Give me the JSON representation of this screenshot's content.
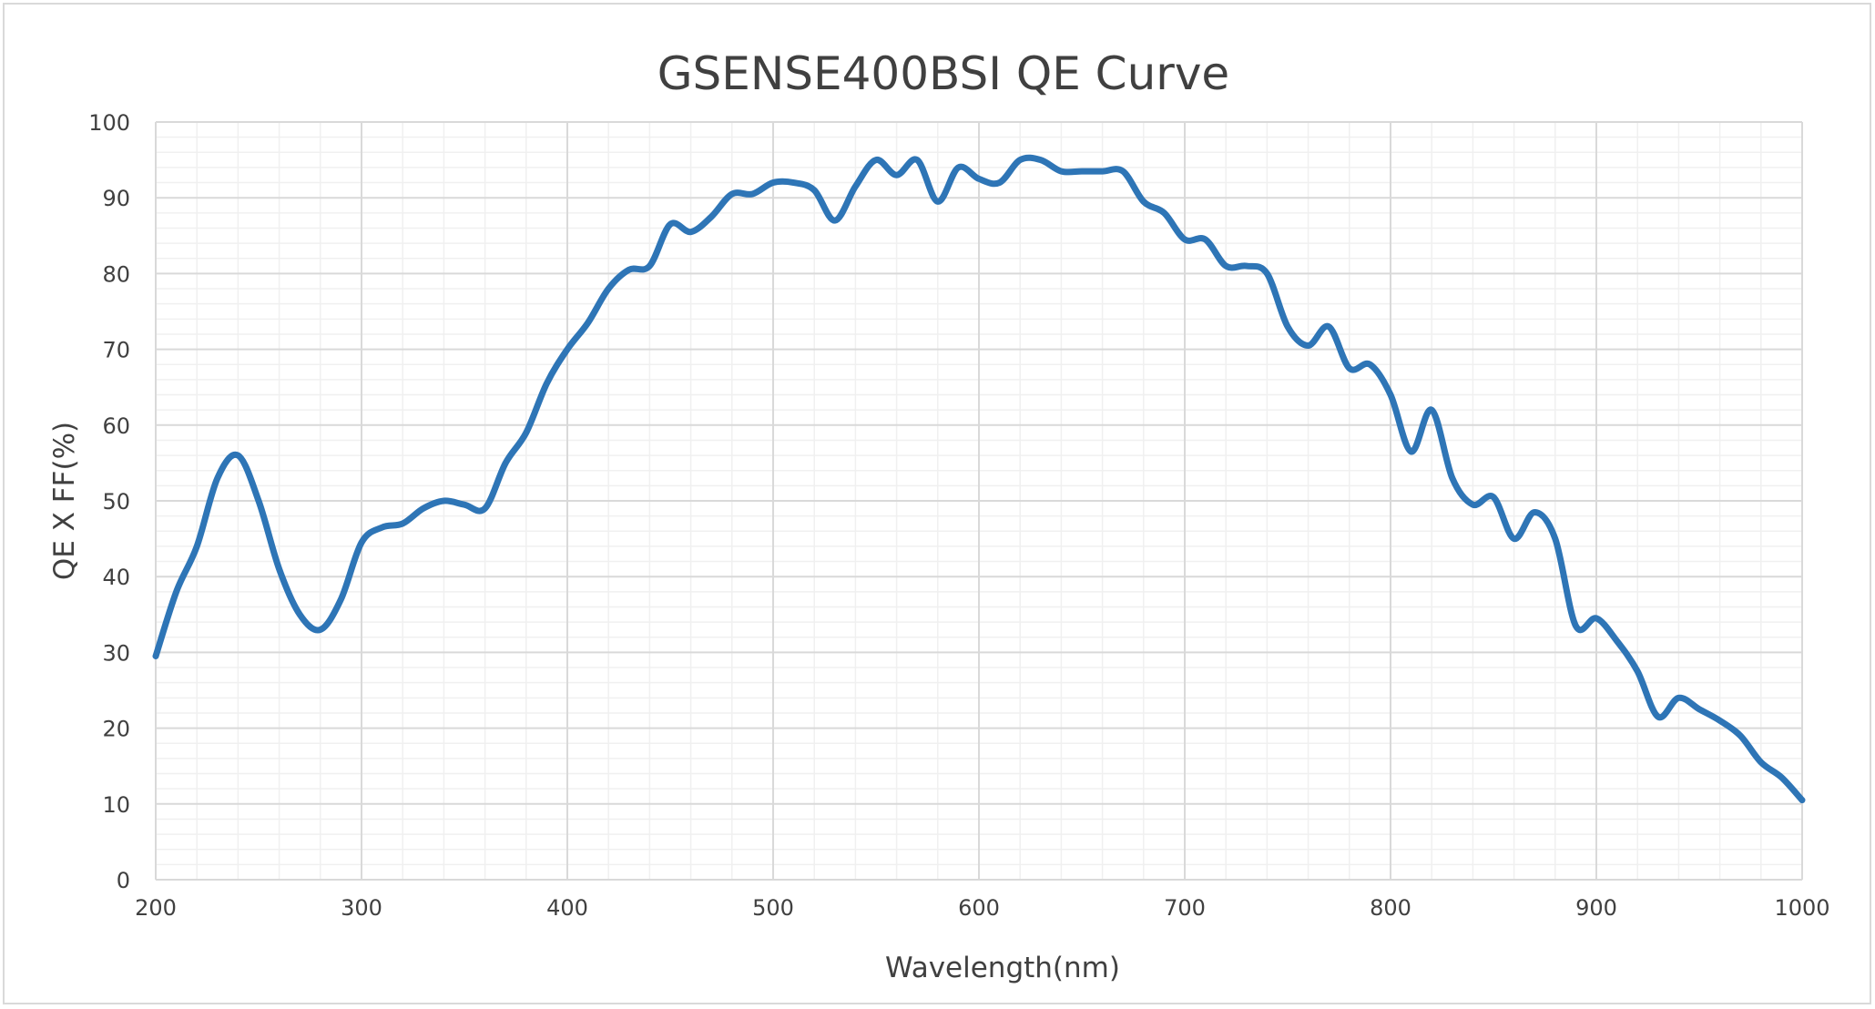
{
  "chart_data": {
    "type": "line",
    "title": "GSENSE400BSI QE  Curve",
    "xlabel": "Wavelength(nm)",
    "ylabel": "QE X FF(%)",
    "xlim": [
      200,
      1000
    ],
    "ylim": [
      0,
      100
    ],
    "x_ticks": [
      200,
      300,
      400,
      500,
      600,
      700,
      800,
      900,
      1000
    ],
    "y_ticks": [
      0,
      10,
      20,
      30,
      40,
      50,
      60,
      70,
      80,
      90,
      100
    ],
    "grid": true,
    "legend": "none",
    "series": [
      {
        "color": "#2e75b6",
        "x": [
          200,
          210,
          220,
          230,
          240,
          250,
          260,
          270,
          280,
          290,
          300,
          310,
          320,
          330,
          340,
          350,
          360,
          370,
          380,
          390,
          400,
          410,
          420,
          430,
          440,
          450,
          460,
          470,
          480,
          490,
          500,
          510,
          520,
          530,
          540,
          550,
          560,
          570,
          580,
          590,
          600,
          610,
          620,
          630,
          640,
          650,
          660,
          670,
          680,
          690,
          700,
          710,
          720,
          730,
          740,
          750,
          760,
          770,
          780,
          790,
          800,
          810,
          820,
          830,
          840,
          850,
          860,
          870,
          880,
          890,
          900,
          910,
          920,
          930,
          940,
          950,
          960,
          970,
          980,
          990,
          1000
        ],
        "y": [
          29.5,
          38,
          44,
          53,
          56,
          50,
          41,
          35,
          33,
          37,
          44.5,
          46.5,
          47,
          49,
          50,
          49.5,
          49,
          55,
          59,
          65.5,
          70,
          73.5,
          78,
          80.5,
          81,
          86.5,
          85.5,
          87.5,
          90.5,
          90.5,
          92,
          92,
          91,
          87,
          91.5,
          95,
          93,
          95,
          89.5,
          94,
          92.5,
          92,
          95,
          95,
          93.5,
          93.5,
          93.5,
          93.5,
          89.5,
          88,
          84.5,
          84.5,
          81,
          81,
          80,
          73,
          70.5,
          73,
          67.5,
          68,
          64,
          56.5,
          62,
          53,
          49.5,
          50.5,
          45,
          48.5,
          45,
          33.5,
          34.5,
          31.5,
          27.5,
          21.5,
          24,
          22.5,
          21,
          19,
          15.5,
          13.5,
          10.5
        ]
      }
    ]
  }
}
